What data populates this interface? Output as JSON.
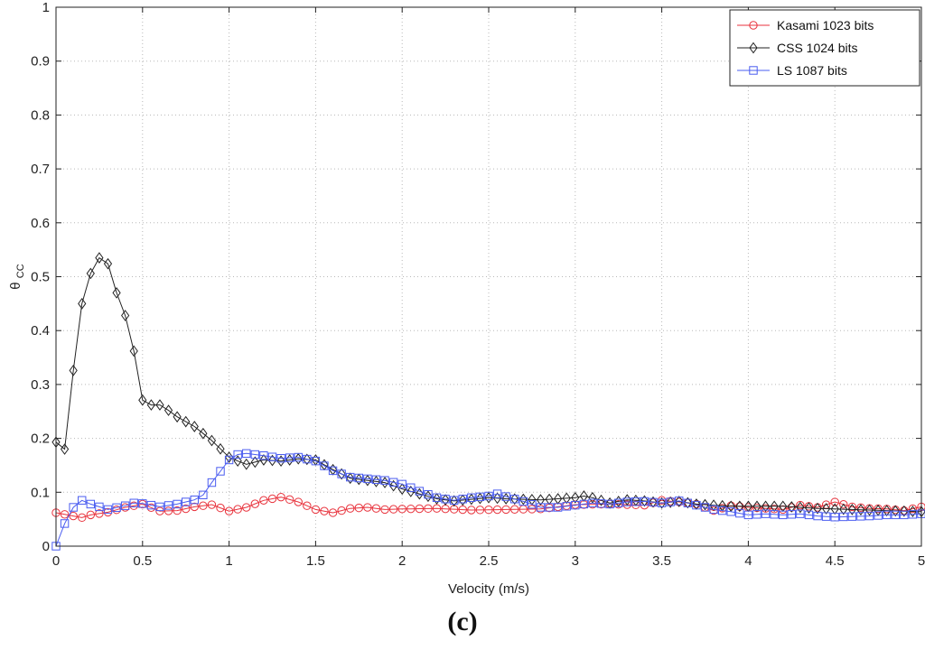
{
  "caption": "(c)",
  "chart_data": {
    "type": "line",
    "xlabel": "Velocity (m/s)",
    "ylabel": "θ",
    "ylabel_sub": "CC",
    "xlim": [
      0,
      5
    ],
    "ylim": [
      0,
      1
    ],
    "xticks": [
      0,
      0.5,
      1,
      1.5,
      2,
      2.5,
      3,
      3.5,
      4,
      4.5,
      5
    ],
    "yticks": [
      0,
      0.1,
      0.2,
      0.3,
      0.4,
      0.5,
      0.6,
      0.7,
      0.8,
      0.9,
      1
    ],
    "grid": true,
    "legend_position": "top-right",
    "series": [
      {
        "name": "Kasami 1023 bits",
        "color": "#e8323c",
        "marker": "circle",
        "points": [
          [
            0,
            0.062
          ],
          [
            0.1,
            0.056
          ],
          [
            0.15,
            0.053
          ],
          [
            0.2,
            0.058
          ],
          [
            0.3,
            0.063
          ],
          [
            0.4,
            0.072
          ],
          [
            0.5,
            0.078
          ],
          [
            0.6,
            0.065
          ],
          [
            0.7,
            0.066
          ],
          [
            0.8,
            0.073
          ],
          [
            0.9,
            0.077
          ],
          [
            1.0,
            0.065
          ],
          [
            1.1,
            0.072
          ],
          [
            1.2,
            0.085
          ],
          [
            1.3,
            0.091
          ],
          [
            1.4,
            0.082
          ],
          [
            1.5,
            0.068
          ],
          [
            1.6,
            0.062
          ],
          [
            1.7,
            0.07
          ],
          [
            1.8,
            0.072
          ],
          [
            1.9,
            0.068
          ],
          [
            2.0,
            0.069
          ],
          [
            2.2,
            0.07
          ],
          [
            2.4,
            0.067
          ],
          [
            2.6,
            0.068
          ],
          [
            2.8,
            0.069
          ],
          [
            3.0,
            0.077
          ],
          [
            3.2,
            0.078
          ],
          [
            3.4,
            0.076
          ],
          [
            3.5,
            0.085
          ],
          [
            3.6,
            0.082
          ],
          [
            3.7,
            0.078
          ],
          [
            3.8,
            0.066
          ],
          [
            3.9,
            0.075
          ],
          [
            4.0,
            0.072
          ],
          [
            4.2,
            0.068
          ],
          [
            4.3,
            0.076
          ],
          [
            4.4,
            0.072
          ],
          [
            4.5,
            0.082
          ],
          [
            4.6,
            0.073
          ],
          [
            4.7,
            0.07
          ],
          [
            4.8,
            0.069
          ],
          [
            4.9,
            0.066
          ],
          [
            5.0,
            0.073
          ]
        ]
      },
      {
        "name": "CSS 1024 bits",
        "color": "#222222",
        "marker": "diamond",
        "points": [
          [
            0,
            0.193
          ],
          [
            0.05,
            0.18
          ],
          [
            0.1,
            0.326
          ],
          [
            0.15,
            0.45
          ],
          [
            0.2,
            0.506
          ],
          [
            0.25,
            0.535
          ],
          [
            0.3,
            0.524
          ],
          [
            0.35,
            0.47
          ],
          [
            0.4,
            0.428
          ],
          [
            0.45,
            0.362
          ],
          [
            0.5,
            0.271
          ],
          [
            0.55,
            0.262
          ],
          [
            0.6,
            0.262
          ],
          [
            0.65,
            0.252
          ],
          [
            0.7,
            0.24
          ],
          [
            0.8,
            0.222
          ],
          [
            0.9,
            0.196
          ],
          [
            1.0,
            0.165
          ],
          [
            1.05,
            0.158
          ],
          [
            1.1,
            0.152
          ],
          [
            1.2,
            0.16
          ],
          [
            1.3,
            0.158
          ],
          [
            1.4,
            0.162
          ],
          [
            1.5,
            0.16
          ],
          [
            1.6,
            0.142
          ],
          [
            1.7,
            0.126
          ],
          [
            1.8,
            0.122
          ],
          [
            1.9,
            0.118
          ],
          [
            2.0,
            0.106
          ],
          [
            2.1,
            0.097
          ],
          [
            2.2,
            0.088
          ],
          [
            2.3,
            0.084
          ],
          [
            2.4,
            0.087
          ],
          [
            2.5,
            0.09
          ],
          [
            2.6,
            0.088
          ],
          [
            2.7,
            0.087
          ],
          [
            2.8,
            0.086
          ],
          [
            2.9,
            0.088
          ],
          [
            3.0,
            0.09
          ],
          [
            3.05,
            0.093
          ],
          [
            3.1,
            0.09
          ],
          [
            3.2,
            0.08
          ],
          [
            3.3,
            0.086
          ],
          [
            3.4,
            0.084
          ],
          [
            3.5,
            0.08
          ],
          [
            3.6,
            0.083
          ],
          [
            3.7,
            0.078
          ],
          [
            3.8,
            0.076
          ],
          [
            3.9,
            0.074
          ],
          [
            4.0,
            0.074
          ],
          [
            4.2,
            0.074
          ],
          [
            4.4,
            0.07
          ],
          [
            4.6,
            0.068
          ],
          [
            4.8,
            0.066
          ],
          [
            5.0,
            0.064
          ]
        ]
      },
      {
        "name": "LS 1087 bits",
        "color": "#4a5cf0",
        "marker": "square",
        "points": [
          [
            0,
            0.0
          ],
          [
            0.05,
            0.042
          ],
          [
            0.1,
            0.072
          ],
          [
            0.15,
            0.085
          ],
          [
            0.2,
            0.078
          ],
          [
            0.3,
            0.068
          ],
          [
            0.4,
            0.075
          ],
          [
            0.45,
            0.08
          ],
          [
            0.5,
            0.079
          ],
          [
            0.6,
            0.073
          ],
          [
            0.7,
            0.078
          ],
          [
            0.8,
            0.086
          ],
          [
            0.85,
            0.095
          ],
          [
            0.9,
            0.118
          ],
          [
            1.0,
            0.16
          ],
          [
            1.05,
            0.17
          ],
          [
            1.1,
            0.172
          ],
          [
            1.2,
            0.168
          ],
          [
            1.3,
            0.163
          ],
          [
            1.4,
            0.165
          ],
          [
            1.5,
            0.158
          ],
          [
            1.6,
            0.14
          ],
          [
            1.7,
            0.128
          ],
          [
            1.8,
            0.125
          ],
          [
            1.9,
            0.122
          ],
          [
            2.0,
            0.115
          ],
          [
            2.1,
            0.102
          ],
          [
            2.2,
            0.09
          ],
          [
            2.3,
            0.085
          ],
          [
            2.4,
            0.09
          ],
          [
            2.5,
            0.093
          ],
          [
            2.55,
            0.097
          ],
          [
            2.6,
            0.092
          ],
          [
            2.7,
            0.083
          ],
          [
            2.8,
            0.072
          ],
          [
            2.9,
            0.072
          ],
          [
            3.0,
            0.076
          ],
          [
            3.1,
            0.08
          ],
          [
            3.2,
            0.078
          ],
          [
            3.3,
            0.082
          ],
          [
            3.4,
            0.083
          ],
          [
            3.5,
            0.08
          ],
          [
            3.6,
            0.084
          ],
          [
            3.7,
            0.076
          ],
          [
            3.8,
            0.068
          ],
          [
            3.9,
            0.064
          ],
          [
            4.0,
            0.058
          ],
          [
            4.1,
            0.06
          ],
          [
            4.2,
            0.058
          ],
          [
            4.3,
            0.06
          ],
          [
            4.4,
            0.056
          ],
          [
            4.5,
            0.054
          ],
          [
            4.6,
            0.055
          ],
          [
            4.7,
            0.056
          ],
          [
            4.8,
            0.058
          ],
          [
            4.9,
            0.058
          ],
          [
            5.0,
            0.06
          ]
        ]
      }
    ]
  }
}
